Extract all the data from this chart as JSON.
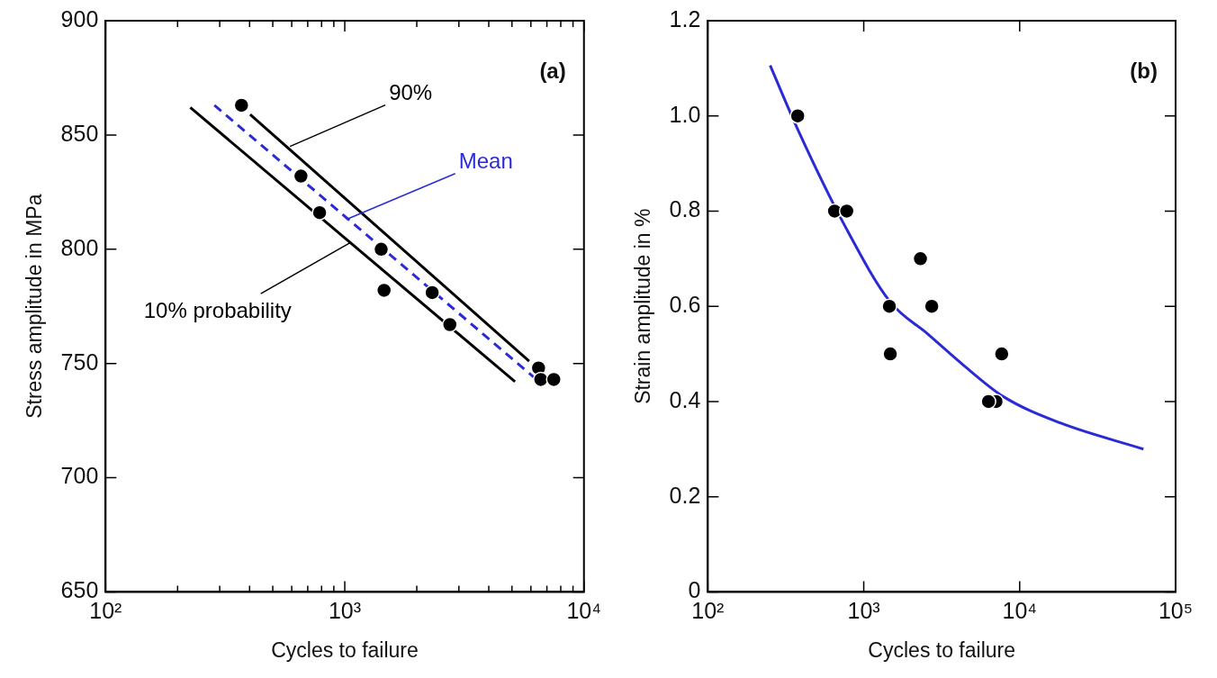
{
  "chart_data": [
    {
      "type": "scatter",
      "xlabel": "Cycles to failure",
      "ylabel": "Stress amplitude in MPa",
      "log": "x",
      "grid": false,
      "legend": false,
      "xlim": [
        100,
        10000
      ],
      "ylim": [
        650,
        900
      ],
      "xticks": [
        {
          "value": 100,
          "label": "10²"
        },
        {
          "value": 200,
          "label": null
        },
        {
          "value": 300,
          "label": null
        },
        {
          "value": 400,
          "label": null
        },
        {
          "value": 500,
          "label": null
        },
        {
          "value": 600,
          "label": null
        },
        {
          "value": 700,
          "label": null
        },
        {
          "value": 800,
          "label": null
        },
        {
          "value": 900,
          "label": null
        },
        {
          "value": 1000,
          "label": "10³"
        },
        {
          "value": 2000,
          "label": null
        },
        {
          "value": 3000,
          "label": null
        },
        {
          "value": 4000,
          "label": null
        },
        {
          "value": 5000,
          "label": null
        },
        {
          "value": 6000,
          "label": null
        },
        {
          "value": 7000,
          "label": null
        },
        {
          "value": 8000,
          "label": null
        },
        {
          "value": 9000,
          "label": null
        },
        {
          "value": 10000,
          "label": "10⁴"
        }
      ],
      "yticks": [
        650,
        700,
        750,
        800,
        850,
        900
      ],
      "series": [
        {
          "type": "line",
          "color": "#000000",
          "line_style": "solid",
          "x": [
            402,
            5900
          ],
          "values": [
            859,
            751
          ]
        },
        {
          "type": "line",
          "color": "#000000",
          "line_style": "solid",
          "x": [
            226,
            5150
          ],
          "values": [
            862,
            742
          ]
        },
        {
          "type": "line",
          "color": "#2b2bd6",
          "line_style": "dashed",
          "x": [
            285,
            6170
          ],
          "values": [
            863,
            744
          ]
        },
        {
          "marker": "circle",
          "color": "#000000",
          "x": [
            370,
            656,
            785,
            1420,
            1460,
            2320,
            2750,
            6460,
            6600,
            7480
          ],
          "values": [
            863,
            832,
            816,
            800,
            782,
            781,
            767,
            748,
            743,
            743
          ]
        }
      ],
      "annotations": [
        "(a)",
        {
          "text": "90%",
          "x": 590,
          "y": 845
        },
        {
          "text": "Mean",
          "x": 1015,
          "y": 813
        },
        {
          "text": "10% probability",
          "x": 1060,
          "y": 803
        }
      ]
    },
    {
      "type": "scatter",
      "xlabel": "Cycles to failure",
      "ylabel": "Strain amplitude in %",
      "log": "x",
      "grid": false,
      "legend": false,
      "xlim": [
        100,
        100000
      ],
      "ylim": [
        0,
        1.2
      ],
      "xticks": [
        {
          "value": 100,
          "label": "10²"
        },
        {
          "value": 1000,
          "label": "10³"
        },
        {
          "value": 10000,
          "label": "10⁴"
        },
        {
          "value": 100000,
          "label": "10⁵"
        }
      ],
      "yticks": [
        {
          "value": 0,
          "label": "0"
        },
        {
          "value": 0.2,
          "label": "0.2"
        },
        {
          "value": 0.4,
          "label": "0.4"
        },
        {
          "value": 0.6,
          "label": "0.6"
        },
        {
          "value": 0.8,
          "label": "0.8"
        },
        {
          "value": 1.0,
          "label": "1.0"
        },
        {
          "value": 1.2,
          "label": "1.2"
        }
      ],
      "series": [
        {
          "type": "line",
          "color": "#2b2bd6",
          "line_style": "solid",
          "x": [
            251,
            377,
            757,
            1480,
            2570,
            4520,
            7890,
            18200,
            62200
          ],
          "values": [
            1.106,
            0.972,
            0.769,
            0.609,
            0.542,
            0.472,
            0.41,
            0.355,
            0.3
          ]
        },
        {
          "marker": "circle",
          "color": "#000000",
          "x": [
            377,
            650,
            778,
            2310,
            1460,
            2730,
            1480,
            7670,
            7050,
            6310
          ],
          "values": [
            1.0,
            0.8,
            0.8,
            0.7,
            0.6,
            0.6,
            0.5,
            0.5,
            0.4,
            0.4
          ]
        }
      ],
      "annotations": [
        "(b)"
      ]
    }
  ]
}
